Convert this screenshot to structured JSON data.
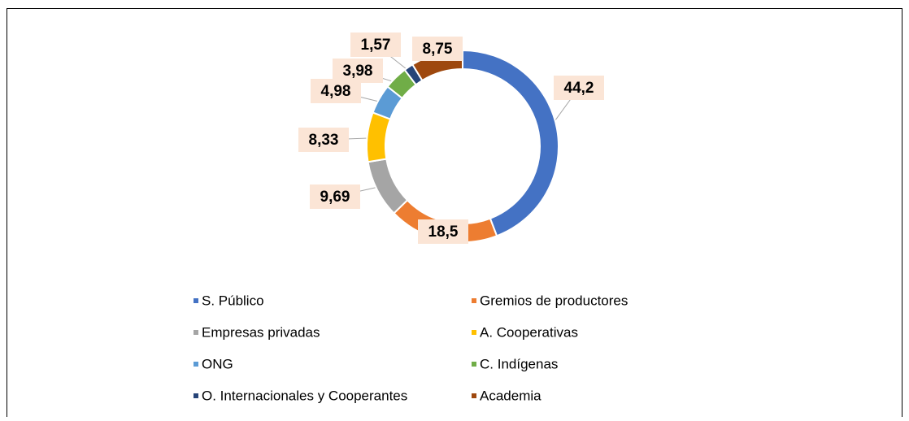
{
  "chart_data": {
    "type": "donut",
    "categories": [
      "S. Público",
      "Gremios de productores",
      "Empresas privadas",
      "A. Cooperativas",
      "ONG",
      "C. Indígenas",
      "O. Internacionales y Cooperantes",
      "Academia"
    ],
    "values": [
      44.2,
      18.5,
      9.69,
      8.33,
      4.98,
      3.98,
      1.57,
      8.75
    ],
    "value_labels": [
      "44,2",
      "18,5",
      "9,69",
      "8,33",
      "4,98",
      "3,98",
      "1,57",
      "8,75"
    ],
    "colors": [
      "#4472c4",
      "#ed7d31",
      "#a5a5a5",
      "#ffc000",
      "#5b9bd5",
      "#70ad47",
      "#264478",
      "#9e480e"
    ],
    "legend": "bottom"
  }
}
